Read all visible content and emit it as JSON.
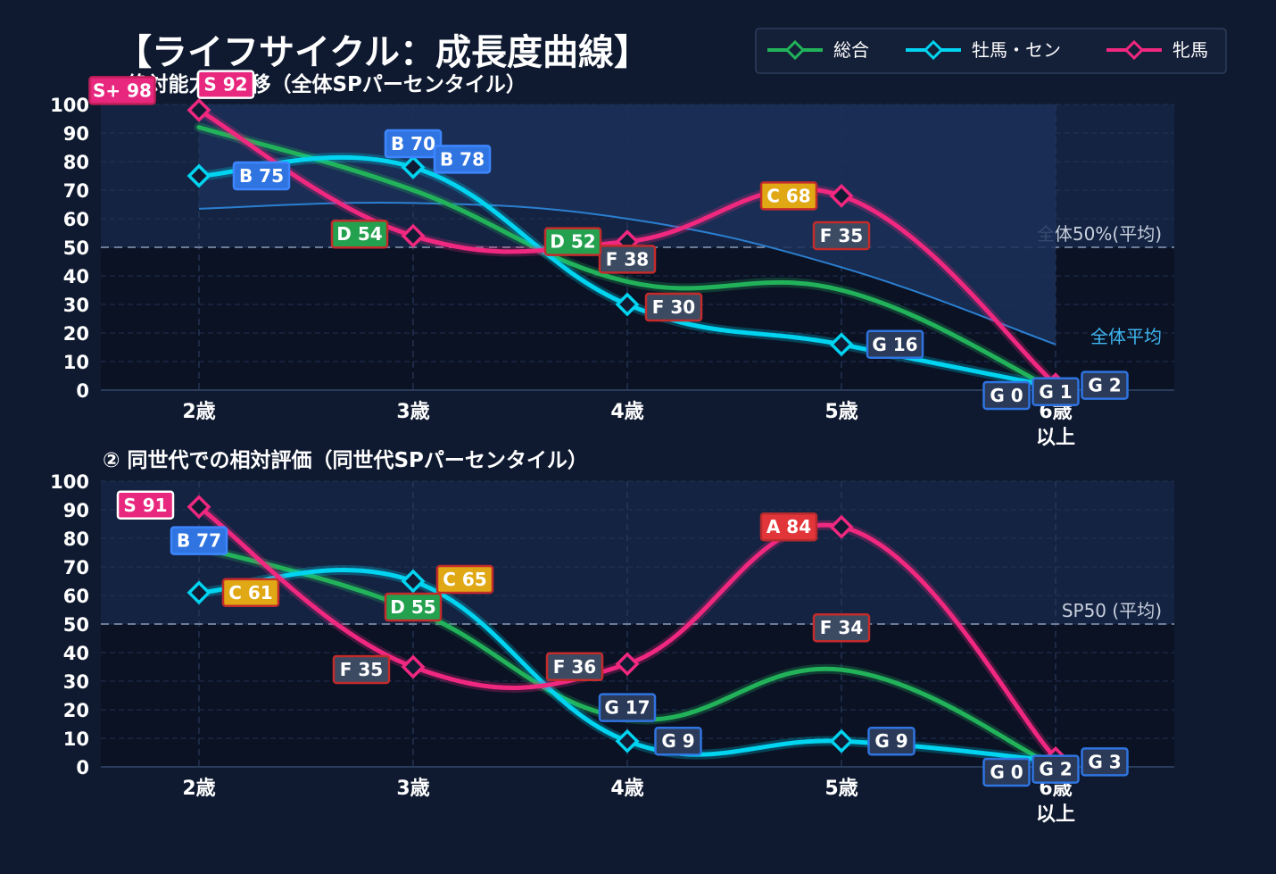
{
  "title": "【ライフサイクル：成長度曲線】",
  "legend": [
    {
      "name": "総合",
      "color": "#22b35a"
    },
    {
      "name": "牡馬・セン",
      "color": "#00d4f0"
    },
    {
      "name": "牝馬",
      "color": "#f0287f"
    }
  ],
  "chart_data": [
    {
      "type": "line",
      "title": "① 絶対能力の推移（全体SPパーセンタイル）",
      "categories": [
        "2歳",
        "3歳",
        "4歳",
        "5歳",
        "6歳\n以上"
      ],
      "ylim": [
        0,
        100
      ],
      "yticks": [
        0,
        10,
        20,
        30,
        40,
        50,
        60,
        70,
        80,
        90,
        100
      ],
      "grid": true,
      "legend_position": "top-right",
      "reference_line": {
        "value": 50,
        "label": "全体50%(平均)"
      },
      "average_curve": {
        "label": "全体平均",
        "values": [
          63.5,
          65.5,
          60,
          43,
          16
        ]
      },
      "series": [
        {
          "name": "総合",
          "values": [
            92,
            70,
            38,
            35,
            0
          ],
          "labels": [
            "S 92",
            "B 70",
            "F 38",
            "F 35",
            "G 0"
          ]
        },
        {
          "name": "牡馬・セン",
          "values": [
            75,
            78,
            30,
            16,
            1
          ],
          "labels": [
            "B 75",
            "B 78",
            "F 30",
            "G 16",
            "G 1"
          ]
        },
        {
          "name": "牝馬",
          "values": [
            98,
            54,
            52,
            68,
            2
          ],
          "labels": [
            "S+ 98",
            "D 54",
            "D 52",
            "C 68",
            "G 2"
          ]
        }
      ]
    },
    {
      "type": "line",
      "title": "② 同世代での相対評価（同世代SPパーセンタイル）",
      "categories": [
        "2歳",
        "3歳",
        "4歳",
        "5歳",
        "6歳\n以上"
      ],
      "ylim": [
        0,
        100
      ],
      "yticks": [
        0,
        10,
        20,
        30,
        40,
        50,
        60,
        70,
        80,
        90,
        100
      ],
      "grid": true,
      "reference_line": {
        "value": 50,
        "label": "SP50 (平均)"
      },
      "series": [
        {
          "name": "総合",
          "values": [
            77,
            55,
            17,
            34,
            0
          ],
          "labels": [
            "B 77",
            "D 55",
            "G 17",
            "F 34",
            "G 0"
          ]
        },
        {
          "name": "牡馬・セン",
          "values": [
            61,
            65,
            9,
            9,
            2
          ],
          "labels": [
            "C 61",
            "C 65",
            "G 9",
            "G 9",
            "G 2"
          ]
        },
        {
          "name": "牝馬",
          "values": [
            91,
            35,
            36,
            84,
            3
          ],
          "labels": [
            "S 91",
            "F 35",
            "F 36",
            "A 84",
            "G 3"
          ]
        }
      ]
    }
  ]
}
